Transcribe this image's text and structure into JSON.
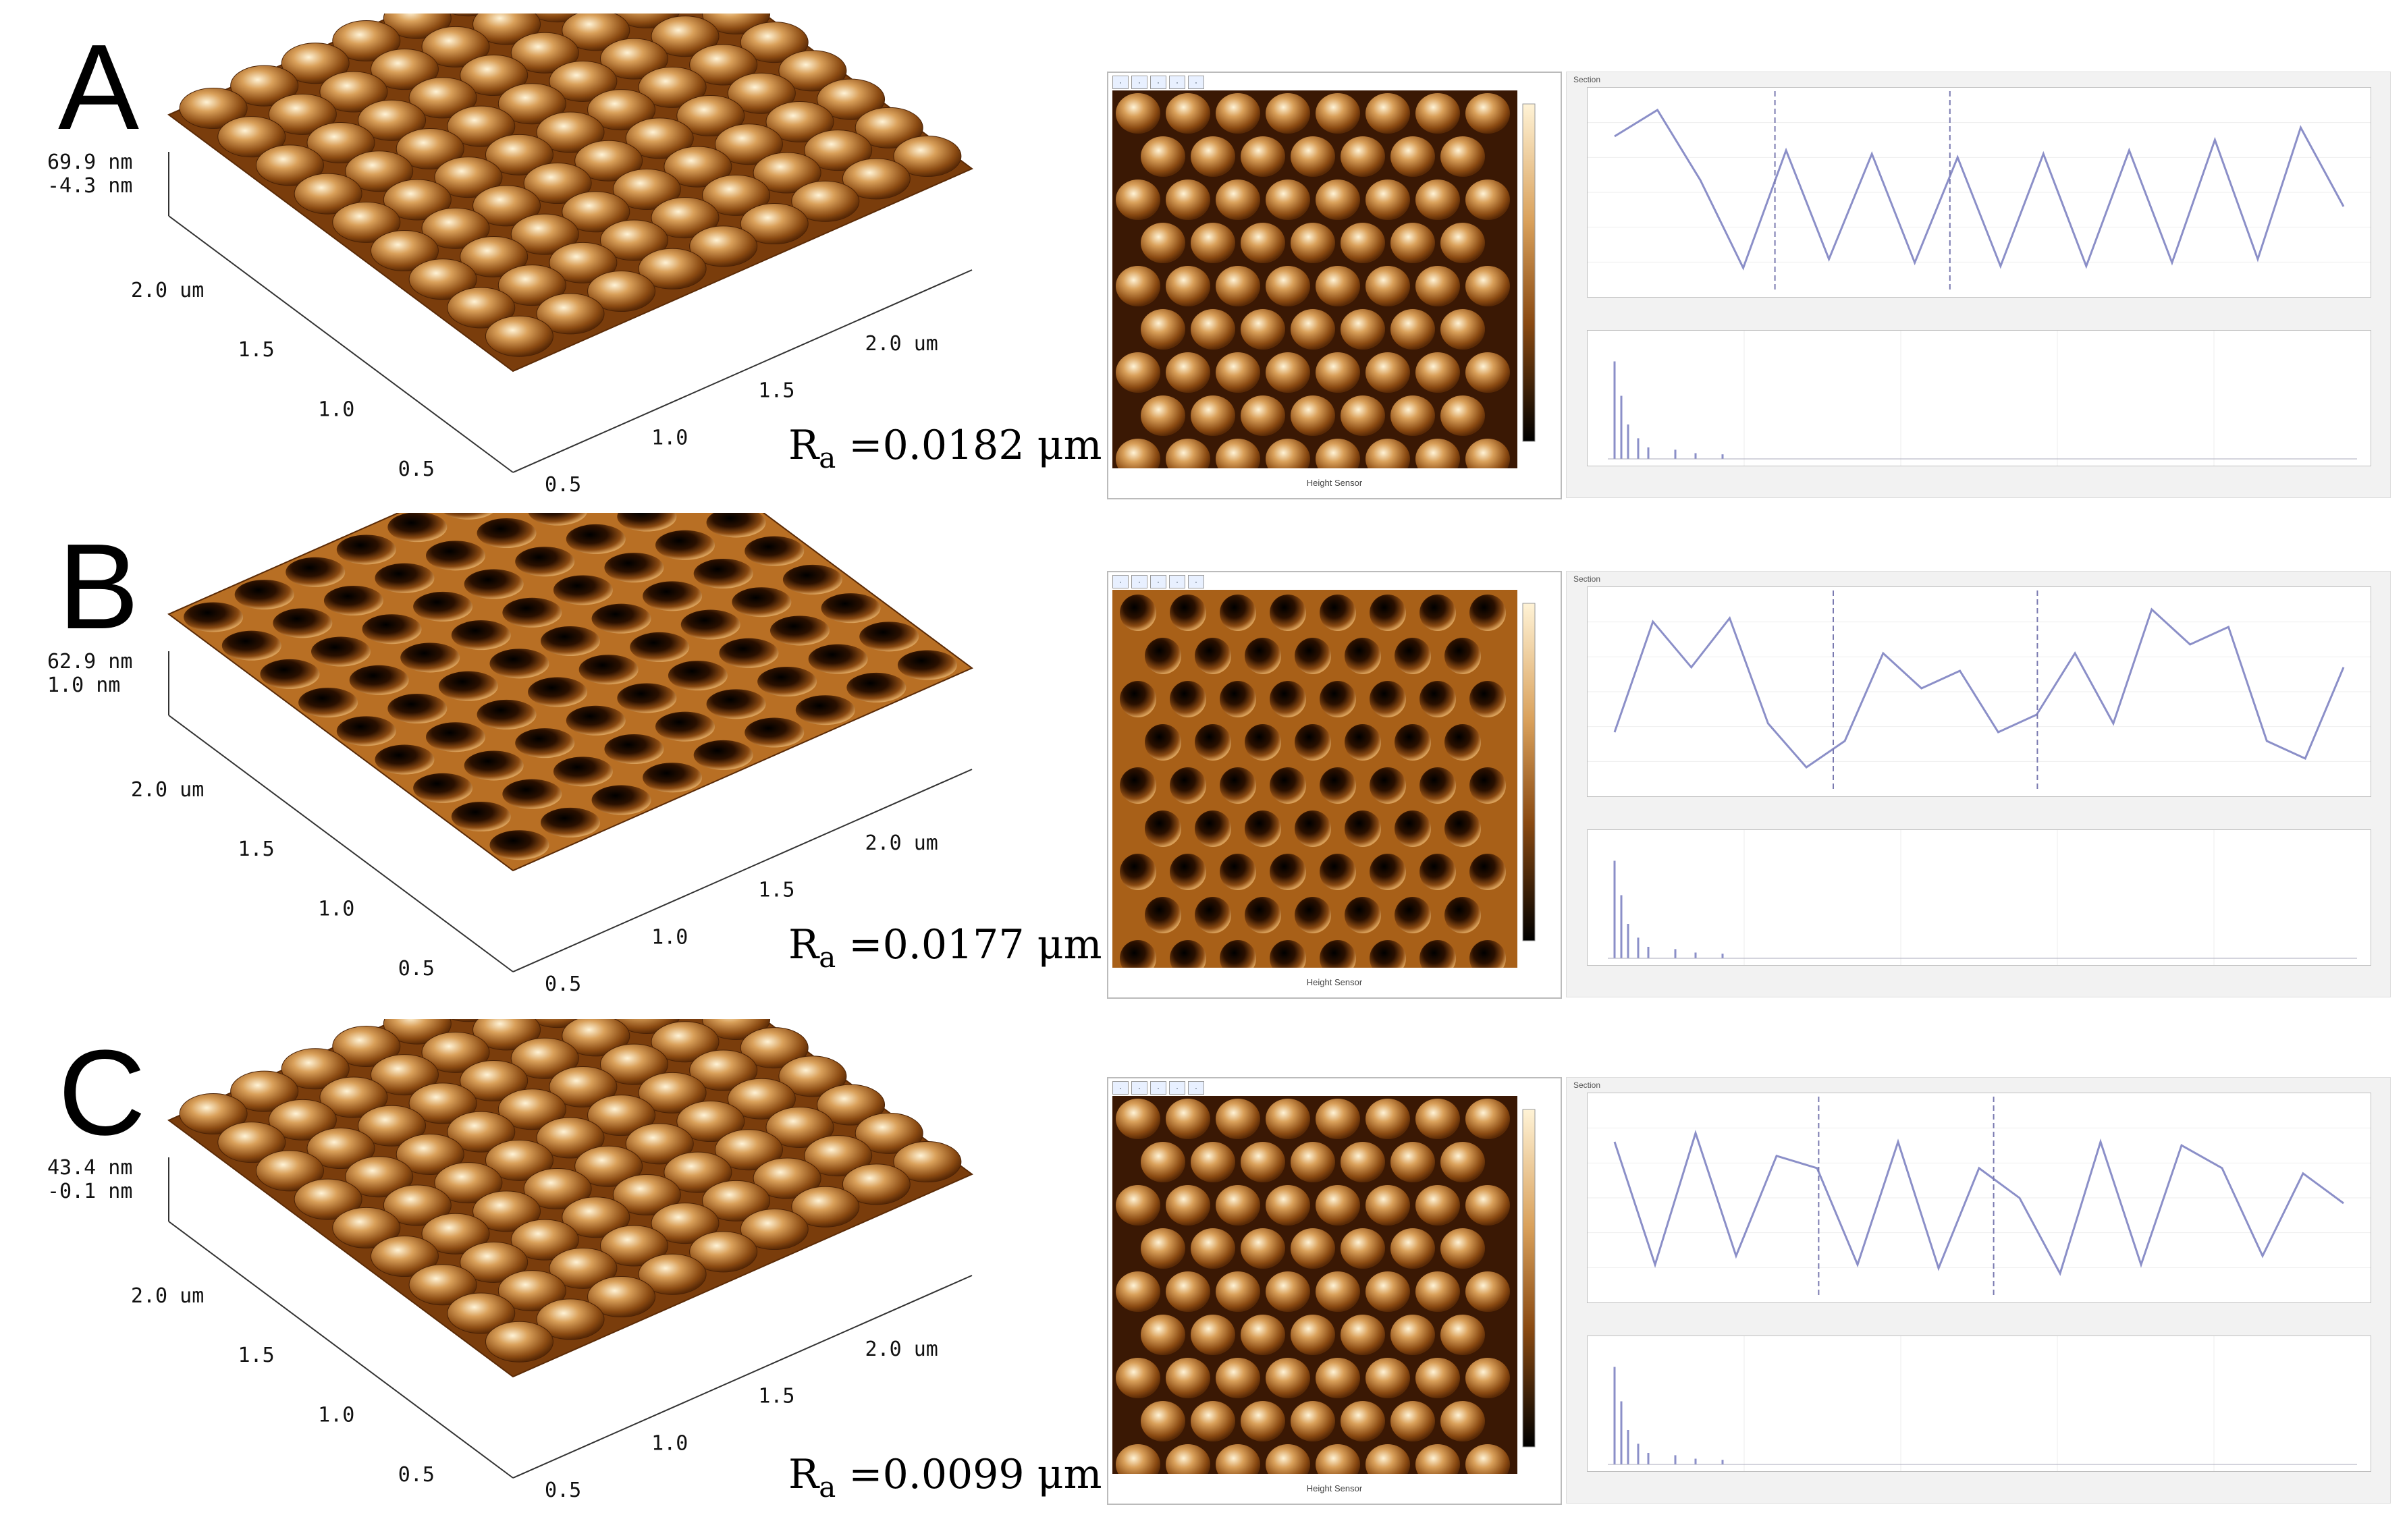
{
  "figure": {
    "panels": [
      {
        "letter": "A",
        "surface": {
          "z_max": "69.9 nm",
          "z_min": "-4.3 nm",
          "axis_left": [
            "2.0 um",
            "1.5",
            "1.0",
            "0.5"
          ],
          "axis_right": [
            "2.0 um",
            "1.5",
            "1.0",
            "0.5"
          ],
          "kind": "domes",
          "roughness_symbol": "R",
          "roughness_sub": "a",
          "roughness_value": "=0.0182 μm"
        },
        "heightmap": {
          "caption": "Height Sensor",
          "kind": "domes"
        },
        "analysis": {
          "title": "Section",
          "profile": [
            0.8,
            0.95,
            0.55,
            0.05,
            0.72,
            0.1,
            0.7,
            0.08,
            0.68,
            0.06,
            0.7,
            0.06,
            0.72,
            0.08,
            0.78,
            0.1,
            0.85,
            0.4
          ],
          "markers": [
            0.22,
            0.46
          ]
        }
      },
      {
        "letter": "B",
        "surface": {
          "z_max": "62.9 nm",
          "z_min": "1.0 nm",
          "axis_left": [
            "2.0 um",
            "1.5",
            "1.0",
            "0.5"
          ],
          "axis_right": [
            "2.0 um",
            "1.5",
            "1.0",
            "0.5"
          ],
          "kind": "pits",
          "roughness_symbol": "R",
          "roughness_sub": "a",
          "roughness_value": "=0.0177 μm"
        },
        "heightmap": {
          "caption": "Height Sensor",
          "kind": "pits"
        },
        "analysis": {
          "title": "Section",
          "profile": [
            0.25,
            0.88,
            0.62,
            0.9,
            0.3,
            0.05,
            0.2,
            0.7,
            0.5,
            0.6,
            0.25,
            0.35,
            0.7,
            0.3,
            0.95,
            0.75,
            0.85,
            0.2,
            0.1,
            0.62
          ],
          "markers": [
            0.3,
            0.58
          ]
        }
      },
      {
        "letter": "C",
        "surface": {
          "z_max": "43.4 nm",
          "z_min": "-0.1 nm",
          "axis_left": [
            "2.0 um",
            "1.5",
            "1.0",
            "0.5"
          ],
          "axis_right": [
            "2.0 um",
            "1.5",
            "1.0",
            "0.5"
          ],
          "kind": "domes",
          "roughness_symbol": "R",
          "roughness_sub": "a",
          "roughness_value": "=0.0099 μm"
        },
        "heightmap": {
          "caption": "Height Sensor",
          "kind": "domes"
        },
        "analysis": {
          "title": "Section",
          "profile": [
            0.8,
            0.1,
            0.85,
            0.15,
            0.72,
            0.65,
            0.1,
            0.8,
            0.08,
            0.65,
            0.48,
            0.05,
            0.8,
            0.1,
            0.78,
            0.65,
            0.15,
            0.62,
            0.45
          ],
          "markers": [
            0.28,
            0.52
          ]
        }
      }
    ],
    "colors": {
      "afm_dark": "#2a1000",
      "afm_mid": "#8a4a12",
      "afm_light": "#d9a05a",
      "afm_highlight": "#fff3d6",
      "profile_line": "#8b8fc8",
      "marker_line": "#7a7ab0"
    }
  }
}
